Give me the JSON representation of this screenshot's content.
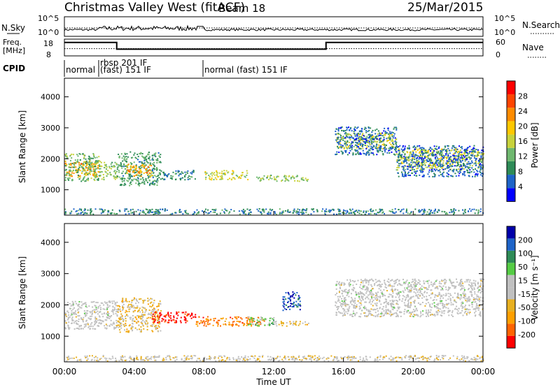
{
  "header": {
    "title": "Christmas Valley West (fitACF)",
    "beam": "Beam 18",
    "date": "25/Mar/2015"
  },
  "colors": {
    "scatter_palette": [
      "#0000ff",
      "#1e64c8",
      "#2e8b57",
      "#6fb86f",
      "#c8d23c",
      "#ffc800",
      "#ff8c00",
      "#ff4500",
      "#ff0000"
    ],
    "velocity_palette": [
      "#ff0000",
      "#ff6400",
      "#ffa000",
      "#e8b020",
      "#c0c0c0",
      "#c0c0c0",
      "#55cc44",
      "#2e8b57",
      "#1e64c8",
      "#0000aa"
    ],
    "foreground": "#000000"
  },
  "time_axis": {
    "label": "Time UT",
    "ticks": [
      "00:00",
      "04:00",
      "08:00",
      "12:00",
      "16:00",
      "20:00",
      "00:00"
    ],
    "range_hours": [
      0,
      24
    ]
  },
  "noise_panel": {
    "left_label": "N.Sky",
    "right_label": "N.Search",
    "left_ticks": [
      "10^5",
      "10^0"
    ],
    "right_ticks": [
      "10^5",
      "10^0"
    ]
  },
  "freq_panel": {
    "left_label_1": "Freq.",
    "left_label_2": "[MHz]",
    "left_ticks": [
      "18",
      "8"
    ],
    "right_ticks": [
      "60",
      "0"
    ],
    "right_label": "Nave",
    "freq_steps": [
      {
        "start": 0,
        "end": 3,
        "value": 16
      },
      {
        "start": 3,
        "end": 15,
        "value": 12
      },
      {
        "start": 15,
        "end": 24,
        "value": 16
      }
    ],
    "nave_level": 26
  },
  "cpid_panel": {
    "label": "CPID",
    "segments": [
      {
        "start": 0,
        "label": "normal"
      },
      {
        "start": 2,
        "label": "rbsp 201 IF"
      },
      {
        "start": 2,
        "label": "(fast) 151 IF"
      },
      {
        "start": 8,
        "label": "normal (fast) 151 IF"
      }
    ]
  },
  "chart_data": [
    {
      "type": "heatmap",
      "name": "power",
      "ylabel": "Slant Range [km]",
      "xlabel": "",
      "yticks": [
        1000,
        2000,
        3000,
        4000
      ],
      "ylim": [
        180,
        4600
      ],
      "xlim": [
        0,
        24
      ],
      "colorbar": {
        "label": "Power [dB]",
        "ticks": [
          "28",
          "24",
          "20",
          "16",
          "12",
          "8",
          "4"
        ],
        "range": [
          0,
          32
        ]
      },
      "bands": [
        {
          "t0": 0.0,
          "t1": 2.0,
          "r0": 1400,
          "r1": 1900,
          "v": 22
        },
        {
          "t0": 0.0,
          "t1": 2.0,
          "r0": 1250,
          "r1": 2150,
          "v": 12
        },
        {
          "t0": 2.0,
          "t1": 3.0,
          "r0": 1300,
          "r1": 1900,
          "v": 14
        },
        {
          "t0": 3.0,
          "t1": 5.5,
          "r0": 1100,
          "r1": 2200,
          "v": 10
        },
        {
          "t0": 3.5,
          "t1": 5.0,
          "r0": 1400,
          "r1": 1800,
          "v": 22
        },
        {
          "t0": 5.5,
          "t1": 7.5,
          "r0": 1300,
          "r1": 1600,
          "v": 8
        },
        {
          "t0": 8.0,
          "t1": 10.5,
          "r0": 1300,
          "r1": 1600,
          "v": 16
        },
        {
          "t0": 11.0,
          "t1": 14.0,
          "r0": 1250,
          "r1": 1450,
          "v": 14
        },
        {
          "t0": 15.5,
          "t1": 19.0,
          "r0": 2300,
          "r1": 2800,
          "v": 16
        },
        {
          "t0": 15.5,
          "t1": 19.0,
          "r0": 2100,
          "r1": 3000,
          "v": 6
        },
        {
          "t0": 19.0,
          "t1": 24.0,
          "r0": 1600,
          "r1": 2300,
          "v": 16
        },
        {
          "t0": 19.0,
          "t1": 24.0,
          "r0": 1400,
          "r1": 2400,
          "v": 6
        },
        {
          "t0": 0.0,
          "t1": 24.0,
          "r0": 180,
          "r1": 360,
          "v": 8
        }
      ]
    },
    {
      "type": "heatmap",
      "name": "velocity",
      "ylabel": "Slant Range [km]",
      "xlabel": "Time UT",
      "yticks": [
        1000,
        2000,
        3000,
        4000
      ],
      "ylim": [
        180,
        4600
      ],
      "xlim": [
        0,
        24
      ],
      "colorbar": {
        "label": "Velocity [m s⁻¹]",
        "ticks": [
          "200",
          "100",
          "50",
          "15",
          "-15",
          "-50",
          "-100",
          "-200"
        ],
        "range": [
          -250,
          250
        ]
      },
      "bands": [
        {
          "t0": 0.0,
          "t1": 3.0,
          "r0": 1200,
          "r1": 2100,
          "v": 0
        },
        {
          "t0": 3.0,
          "t1": 5.5,
          "r0": 1100,
          "r1": 2200,
          "v": -60
        },
        {
          "t0": 5.0,
          "t1": 7.5,
          "r0": 1400,
          "r1": 1750,
          "v": -220
        },
        {
          "t0": 7.5,
          "t1": 11.5,
          "r0": 1300,
          "r1": 1600,
          "v": -150
        },
        {
          "t0": 10.5,
          "t1": 12.0,
          "r0": 1300,
          "r1": 1600,
          "v": 60
        },
        {
          "t0": 12.0,
          "t1": 14.0,
          "r0": 1300,
          "r1": 1450,
          "v": -60
        },
        {
          "t0": 12.5,
          "t1": 13.5,
          "r0": 1800,
          "r1": 2400,
          "v": 180
        },
        {
          "t0": 15.5,
          "t1": 24.0,
          "r0": 1600,
          "r1": 2800,
          "v": 0
        },
        {
          "t0": 0.0,
          "t1": 24.0,
          "r0": 180,
          "r1": 360,
          "v": -30
        }
      ]
    }
  ]
}
